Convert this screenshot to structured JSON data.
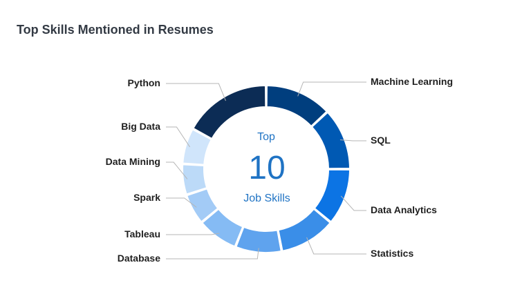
{
  "chart_data": {
    "type": "pie",
    "title": "Top Skills Mentioned in Resumes",
    "center_text": {
      "line1": "Top",
      "line2": "10",
      "line3": "Job Skills"
    },
    "categories": [
      "Machine Learning",
      "SQL",
      "Data Analytics",
      "Statistics",
      "Database",
      "Tableau",
      "Spark",
      "Data Mining",
      "Big Data",
      "Python"
    ],
    "values": [
      13,
      12,
      11,
      11,
      9,
      8,
      6,
      6,
      7,
      17
    ],
    "colors": [
      "#003e7e",
      "#0059b3",
      "#0c74e4",
      "#3a8ee8",
      "#5fa3ee",
      "#85bbf4",
      "#a3cbf6",
      "#bcdaf8",
      "#d0e5fb",
      "#0c2c55"
    ],
    "legend": "none"
  }
}
